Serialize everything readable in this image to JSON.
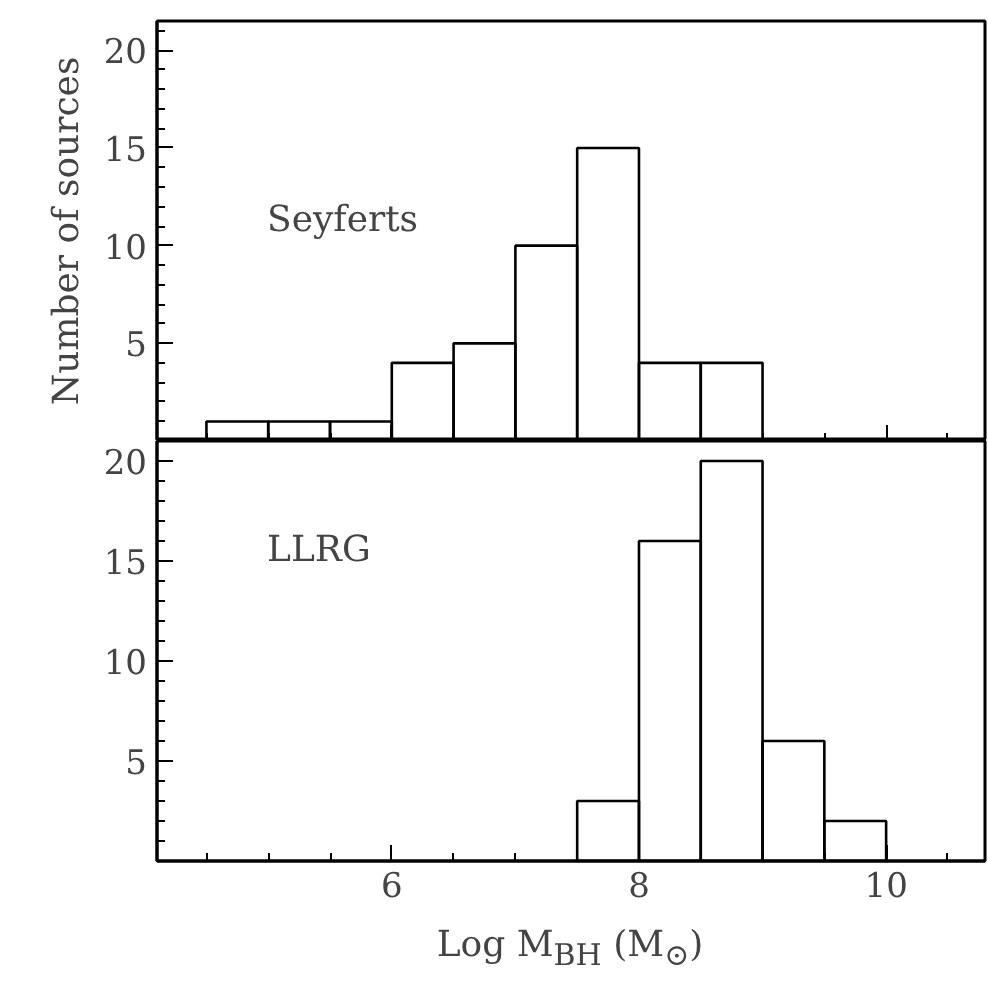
{
  "chart_data": [
    {
      "type": "histogram",
      "annotations": [
        "Seyferts"
      ],
      "ylabel": "Number of sources",
      "bins": [
        4.5,
        5,
        5.5,
        6,
        6.5,
        7,
        7.5,
        8,
        8.5,
        9
      ],
      "values": [
        1,
        1,
        1,
        4,
        5,
        10,
        15,
        4,
        4
      ],
      "color": "#000000",
      "xlim": [
        4.1,
        10.8
      ],
      "xticks": [
        6,
        8,
        10
      ],
      "ylim": [
        0,
        21.5
      ],
      "yticks": [
        5,
        10,
        15,
        20
      ],
      "tick_labels": "y",
      "grid": false
    },
    {
      "type": "histogram",
      "annotations": [
        "LLRG"
      ],
      "xlabel": "Log M$_{BH}$ (M$_{⊙}$)",
      "bins": [
        7.5,
        8,
        8.5,
        9,
        9.5,
        10
      ],
      "values": [
        3,
        16,
        20,
        6,
        2
      ],
      "color": "#000000",
      "xlim": [
        4.1,
        10.8
      ],
      "xticks": [
        6,
        8,
        10
      ],
      "ylim": [
        0,
        21
      ],
      "yticks": [
        5,
        10,
        15,
        20
      ],
      "grid": false
    }
  ]
}
